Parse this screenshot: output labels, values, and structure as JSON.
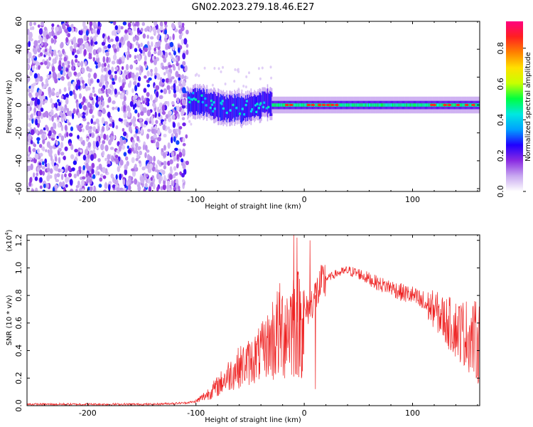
{
  "title": "GN02.2023.279.18.46.E27",
  "chart_data": [
    {
      "type": "heatmap",
      "xlabel": "Height of straight line (km)",
      "ylabel": "Frequency (Hz)",
      "xlim": [
        -256,
        162
      ],
      "ylim": [
        -62,
        60
      ],
      "xticks": [
        -200,
        -100,
        0,
        100
      ],
      "xtick_labels": [
        "-200",
        "-100",
        "0",
        "100"
      ],
      "yticks": [
        -60,
        -40,
        -20,
        0,
        20,
        40,
        60
      ],
      "ytick_labels": [
        "-60",
        "-40",
        "-20",
        "0",
        "20",
        "40",
        "60"
      ],
      "grid": false,
      "colorbar": {
        "label": "Normalized spectral amplitude",
        "range": [
          0.0,
          0.95
        ],
        "ticks": [
          0.0,
          0.2,
          0.4,
          0.6,
          0.8
        ],
        "tick_labels": [
          "0.0",
          "0.2",
          "0.4",
          "0.6",
          "0.8"
        ],
        "colormap": [
          "#ffffff",
          "#c8a8f0",
          "#8a2be2",
          "#2000ff",
          "#00a0ff",
          "#00e8e0",
          "#00ff40",
          "#c8ff00",
          "#ffe000",
          "#ff8000",
          "#ff2020",
          "#ff0080"
        ]
      },
      "regions": [
        {
          "x_range": [
            -256,
            -108
          ],
          "freq_range": [
            -62,
            60
          ],
          "amplitude": 0.12
        },
        {
          "x_range": [
            -108,
            -30
          ],
          "center_freq": 0,
          "halfwidth": 8,
          "amplitude": 0.35
        },
        {
          "x_range": [
            -30,
            162
          ],
          "center_freq": 0,
          "halfwidth": 3,
          "amplitude": 0.45
        }
      ]
    },
    {
      "type": "line",
      "xlabel": "Height of straight line (km)",
      "ylabel": "SNR (10 * v/v)",
      "y_multiplier": "(x10",
      "y_multiplier_exp": "4",
      "y_multiplier_close": ")",
      "xlim": [
        -256,
        162
      ],
      "ylim": [
        0.0,
        1.24
      ],
      "xticks": [
        -200,
        -100,
        0,
        100
      ],
      "xtick_labels": [
        "-200",
        "-100",
        "0",
        "100"
      ],
      "yticks": [
        0.0,
        0.2,
        0.4,
        0.6,
        0.8,
        1.0,
        1.2
      ],
      "ytick_labels": [
        "0.0",
        "0.2",
        "0.4",
        "0.6",
        "0.8",
        "1.0",
        "1.2"
      ],
      "grid": false,
      "line_color": "#ee2222",
      "series": [
        {
          "x": [
            -256,
            -220,
            -180,
            -140,
            -110,
            -100,
            -90,
            -80,
            -70,
            -60,
            -50,
            -40,
            -30,
            -20,
            -15,
            -10,
            -5,
            0,
            10,
            20,
            30,
            40,
            50,
            60,
            70,
            80,
            90,
            100,
            110,
            120,
            130,
            140,
            150,
            162
          ],
          "y": [
            0.01,
            0.01,
            0.01,
            0.01,
            0.02,
            0.03,
            0.08,
            0.14,
            0.22,
            0.28,
            0.32,
            0.38,
            0.48,
            0.55,
            0.58,
            0.62,
            0.6,
            0.65,
            0.8,
            0.92,
            0.96,
            0.98,
            0.96,
            0.92,
            0.88,
            0.86,
            0.82,
            0.8,
            0.74,
            0.7,
            0.62,
            0.56,
            0.52,
            0.45
          ]
        }
      ]
    }
  ]
}
